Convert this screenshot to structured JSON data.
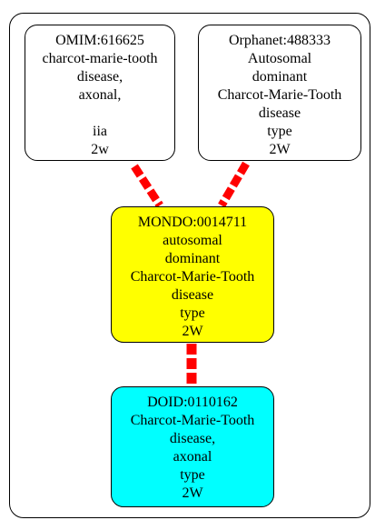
{
  "diagram": {
    "nodes": [
      {
        "id": "omim",
        "fill": "#ffffff",
        "lines": [
          "OMIM:616625",
          "charcot-marie-tooth",
          "disease,",
          "axonal,",
          "",
          "iia",
          "2w"
        ]
      },
      {
        "id": "orphanet",
        "fill": "#ffffff",
        "lines": [
          "Orphanet:488333",
          "Autosomal",
          "dominant",
          "Charcot-Marie-Tooth",
          "disease",
          "type",
          "2W"
        ]
      },
      {
        "id": "mondo",
        "fill": "#ffff00",
        "lines": [
          "MONDO:0014711",
          "autosomal",
          "dominant",
          "Charcot-Marie-Tooth",
          "disease",
          "type",
          "2W"
        ]
      },
      {
        "id": "doid",
        "fill": "#00ffff",
        "lines": [
          "DOID:0110162",
          "Charcot-Marie-Tooth",
          "disease,",
          "axonal",
          "type",
          "2W"
        ]
      }
    ],
    "edges": [
      {
        "from": "omim",
        "to": "mondo",
        "color": "#ff0000"
      },
      {
        "from": "orphanet",
        "to": "mondo",
        "color": "#ff0000"
      },
      {
        "from": "mondo",
        "to": "doid",
        "color": "#ff0000"
      }
    ]
  }
}
